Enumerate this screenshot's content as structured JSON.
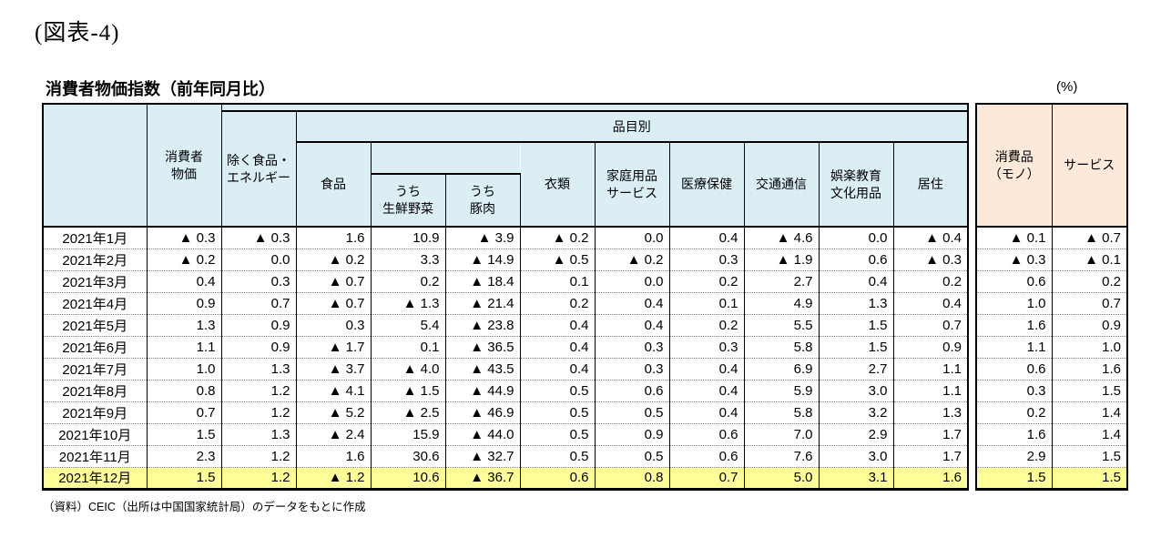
{
  "page": {
    "figure_label": "(図表-4)",
    "title": "消費者物価指数（前年同月比）",
    "unit_label": "(%)",
    "source_note": "（資料）CEIC（出所は中国国家統計局）のデータをもとに作成"
  },
  "colors": {
    "header_blue": "#DAEEF3",
    "header_peach": "#FDE9D9",
    "highlight_yellow": "#FFFF99"
  },
  "header_display": {
    "month": "",
    "group": "品目別",
    "cpi": "消費者\n物価",
    "core": "除く食品・\nエネルギー",
    "food": "食品",
    "fresh_vegetables": "うち\n生鮮野菜",
    "pork": "うち\n豚肉",
    "clothing": "衣類",
    "household_goods_services": "家庭用品\nサービス",
    "medical_care": "医療保健",
    "transport_communication": "交通通信",
    "recreation_education_culture": "娯楽教育\n文化用品",
    "housing": "居住",
    "consumer_goods": "消費品\n（モノ）",
    "services": "サービス"
  },
  "chart_data": {
    "type": "table",
    "title": "消費者物価指数（前年同月比）",
    "unit": "%",
    "negative_marker": "▲",
    "group_header": {
      "label": "品目別",
      "spans": [
        "食品",
        "うち生鮮野菜",
        "うち豚肉",
        "衣類",
        "家庭用品サービス",
        "医療保健",
        "交通通信",
        "娯楽教育文化用品",
        "居住"
      ]
    },
    "columns": [
      "消費者物価",
      "除く食品・エネルギー",
      "食品",
      "うち生鮮野菜",
      "うち豚肉",
      "衣類",
      "家庭用品サービス",
      "医療保健",
      "交通通信",
      "娯楽教育文化用品",
      "居住",
      "消費品（モノ）",
      "サービス"
    ],
    "rows": [
      {
        "month": "2021年1月",
        "values": [
          "▲ 0.3",
          "▲ 0.3",
          "1.6",
          "10.9",
          "▲ 3.9",
          "▲ 0.2",
          "0.0",
          "0.4",
          "▲ 4.6",
          "0.0",
          "▲ 0.4",
          "▲ 0.1",
          "▲ 0.7"
        ],
        "highlight": false
      },
      {
        "month": "2021年2月",
        "values": [
          "▲ 0.2",
          "0.0",
          "▲ 0.2",
          "3.3",
          "▲ 14.9",
          "▲ 0.5",
          "▲ 0.2",
          "0.3",
          "▲ 1.9",
          "0.6",
          "▲ 0.3",
          "▲ 0.3",
          "▲ 0.1"
        ],
        "highlight": false
      },
      {
        "month": "2021年3月",
        "values": [
          "0.4",
          "0.3",
          "▲ 0.7",
          "0.2",
          "▲ 18.4",
          "0.1",
          "0.0",
          "0.2",
          "2.7",
          "0.4",
          "0.2",
          "0.6",
          "0.2"
        ],
        "highlight": false
      },
      {
        "month": "2021年4月",
        "values": [
          "0.9",
          "0.7",
          "▲ 0.7",
          "▲ 1.3",
          "▲ 21.4",
          "0.2",
          "0.4",
          "0.1",
          "4.9",
          "1.3",
          "0.4",
          "1.0",
          "0.7"
        ],
        "highlight": false
      },
      {
        "month": "2021年5月",
        "values": [
          "1.3",
          "0.9",
          "0.3",
          "5.4",
          "▲ 23.8",
          "0.4",
          "0.4",
          "0.2",
          "5.5",
          "1.5",
          "0.7",
          "1.6",
          "0.9"
        ],
        "highlight": false
      },
      {
        "month": "2021年6月",
        "values": [
          "1.1",
          "0.9",
          "▲ 1.7",
          "0.1",
          "▲ 36.5",
          "0.4",
          "0.3",
          "0.3",
          "5.8",
          "1.5",
          "0.9",
          "1.1",
          "1.0"
        ],
        "highlight": false
      },
      {
        "month": "2021年7月",
        "values": [
          "1.0",
          "1.3",
          "▲ 3.7",
          "▲ 4.0",
          "▲ 43.5",
          "0.4",
          "0.3",
          "0.4",
          "6.9",
          "2.7",
          "1.1",
          "0.6",
          "1.6"
        ],
        "highlight": false
      },
      {
        "month": "2021年8月",
        "values": [
          "0.8",
          "1.2",
          "▲ 4.1",
          "▲ 1.5",
          "▲ 44.9",
          "0.5",
          "0.6",
          "0.4",
          "5.9",
          "3.0",
          "1.1",
          "0.3",
          "1.5"
        ],
        "highlight": false
      },
      {
        "month": "2021年9月",
        "values": [
          "0.7",
          "1.2",
          "▲ 5.2",
          "▲ 2.5",
          "▲ 46.9",
          "0.5",
          "0.5",
          "0.4",
          "5.8",
          "3.2",
          "1.3",
          "0.2",
          "1.4"
        ],
        "highlight": false
      },
      {
        "month": "2021年10月",
        "values": [
          "1.5",
          "1.3",
          "▲ 2.4",
          "15.9",
          "▲ 44.0",
          "0.5",
          "0.9",
          "0.6",
          "7.0",
          "2.9",
          "1.7",
          "1.6",
          "1.4"
        ],
        "highlight": false
      },
      {
        "month": "2021年11月",
        "values": [
          "2.3",
          "1.2",
          "1.6",
          "30.6",
          "▲ 32.7",
          "0.5",
          "0.5",
          "0.6",
          "7.6",
          "3.0",
          "1.7",
          "2.9",
          "1.5"
        ],
        "highlight": false
      },
      {
        "month": "2021年12月",
        "values": [
          "1.5",
          "1.2",
          "▲ 1.2",
          "10.6",
          "▲ 36.7",
          "0.6",
          "0.8",
          "0.7",
          "5.0",
          "3.1",
          "1.6",
          "1.5",
          "1.5"
        ],
        "highlight": true
      }
    ]
  }
}
